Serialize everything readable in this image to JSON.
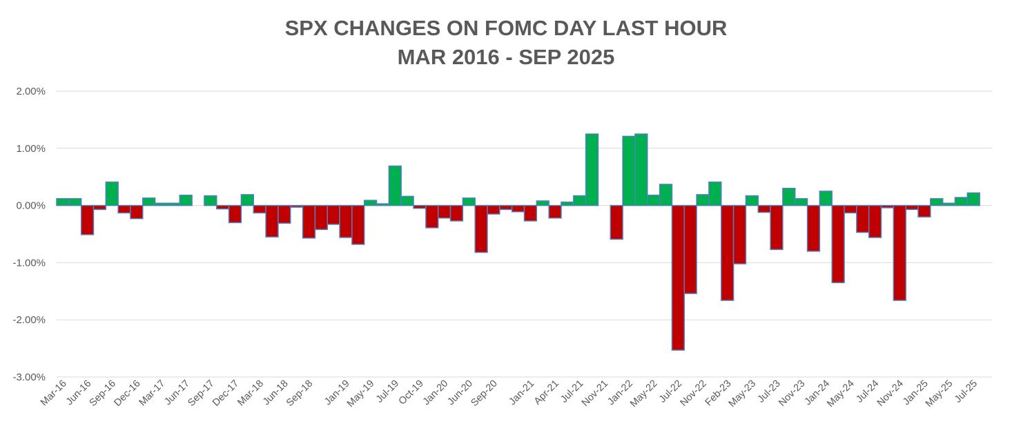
{
  "chart_data": {
    "type": "bar",
    "title": "SPX CHANGES ON FOMC DAY LAST HOUR",
    "subtitle": "MAR 2016 - SEP 2025",
    "xlabel": "",
    "ylabel": "",
    "ylim": [
      -3,
      2
    ],
    "yticks": [
      2,
      1,
      0,
      -1,
      -2,
      -3
    ],
    "ytick_labels": [
      "2.00%",
      "1.00%",
      "0.00%",
      "-1.00%",
      "-2.00%",
      "-3.00%"
    ],
    "grid": true,
    "legend": "none",
    "colors": {
      "positive": "#00b050",
      "negative": "#c00000",
      "outline": "#4f81bd",
      "grid": "#d9d9d9",
      "text": "#595959"
    },
    "categories": [
      "Mar-16",
      "Apr-16",
      "Jun-16",
      "Jul-16",
      "Sep-16",
      "Nov-16",
      "Dec-16",
      "Feb-17",
      "Mar-17",
      "May-17",
      "Jun-17",
      "Jul-17",
      "Sep-17",
      "Nov-17",
      "Dec-17",
      "Jan-18",
      "Mar-18",
      "May-18",
      "Jun-18",
      "Aug-18",
      "Sep-18",
      "Nov-18",
      "Dec-18",
      "Jan-19",
      "Mar-19",
      "May-19",
      "Jun-19",
      "Jul-19",
      "Sep-19",
      "Oct-19",
      "Dec-19",
      "Jan-20",
      "Apr-20",
      "Jun-20",
      "Jul-20",
      "Sep-20",
      "Nov-20",
      "Dec-20",
      "Jan-21",
      "Mar-21",
      "Apr-21",
      "Jun-21",
      "Jul-21",
      "Sep-21",
      "Nov-21",
      "Dec-21",
      "Jan-22",
      "Mar-22",
      "May-22",
      "Jun-22",
      "Jul-22",
      "Sep-22",
      "Nov-22",
      "Dec-22",
      "Feb-23",
      "Mar-23",
      "May-23",
      "Jun-23",
      "Jul-23",
      "Sep-23",
      "Nov-23",
      "Dec-23",
      "Jan-24",
      "Mar-24",
      "May-24",
      "Jun-24",
      "Jul-24",
      "Sep-24",
      "Nov-24",
      "Dec-24",
      "Jan-25",
      "Mar-25",
      "May-25",
      "Jun-25",
      "Jul-25",
      "Sep-25"
    ],
    "values": [
      0.12,
      0.12,
      -0.51,
      -0.07,
      0.41,
      -0.13,
      -0.23,
      0.13,
      0.04,
      0.04,
      0.18,
      0.0,
      0.17,
      -0.06,
      -0.3,
      0.19,
      -0.13,
      -0.55,
      -0.31,
      -0.03,
      -0.57,
      -0.42,
      -0.33,
      -0.56,
      -0.68,
      0.09,
      0.03,
      0.69,
      0.16,
      -0.05,
      -0.39,
      -0.22,
      -0.27,
      0.13,
      -0.82,
      -0.15,
      -0.07,
      -0.11,
      -0.27,
      0.08,
      -0.22,
      0.06,
      0.17,
      1.25,
      0.0,
      -0.59,
      1.21,
      1.25,
      0.18,
      0.37,
      -2.53,
      -1.54,
      0.19,
      0.41,
      -1.66,
      -1.02,
      0.17,
      -0.12,
      -0.77,
      0.3,
      0.12,
      -0.8,
      0.25,
      -1.35,
      -0.13,
      -0.47,
      -0.56,
      -0.04,
      -1.66,
      -0.07,
      -0.2,
      0.12,
      0.04,
      0.14,
      0.22,
      0.0
    ],
    "shown_labels": [
      "Mar-16",
      "Jun-16",
      "Sep-16",
      "Dec-16",
      "Mar-17",
      "Jun-17",
      "Sep-17",
      "Dec-17",
      "Mar-18",
      "Jun-18",
      "Sep-18",
      "Jan-19",
      "May-19",
      "Jul-19",
      "Oct-19",
      "Jan-20",
      "Jun-20",
      "Sep-20",
      "Jan-21",
      "Apr-21",
      "Jul-21",
      "Nov-21",
      "Jan-22",
      "May-22",
      "Jul-22",
      "Nov-22",
      "Feb-23",
      "May-23",
      "Jul-23",
      "Nov-23",
      "Jan-24",
      "May-24",
      "Jul-24",
      "Nov-24",
      "Jan-25",
      "May-25",
      "Jul-25"
    ]
  }
}
